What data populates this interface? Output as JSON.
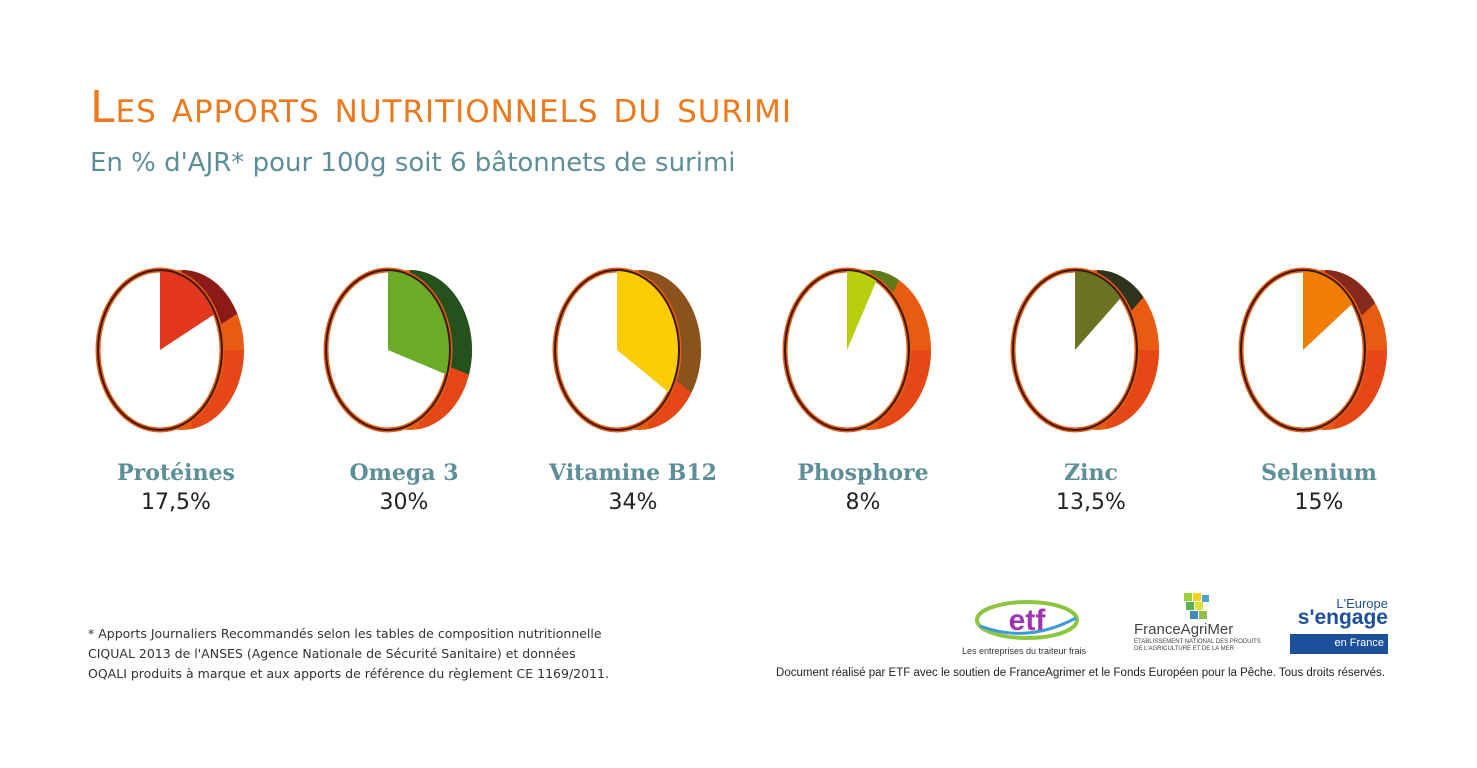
{
  "title": "Les apports nutritionnels du surimi",
  "subtitle": "En % d'AJR* pour 100g soit 6 bâtonnets de surimi",
  "chart_data": {
    "type": "pie",
    "categories": [
      "Protéines",
      "Omega 3",
      "Vitamine B12",
      "Phosphore",
      "Zinc",
      "Selenium"
    ],
    "values": [
      17.5,
      30,
      34,
      8,
      13.5,
      15
    ],
    "value_labels": [
      "17,5%",
      "30%",
      "34%",
      "8%",
      "13,5%",
      "15%"
    ],
    "unit": "%",
    "colors": [
      "#e3361f",
      "#6aac25",
      "#fccc04",
      "#b9cf0e",
      "#6b7322",
      "#f07d07"
    ],
    "dark_colors": [
      "#8c1a19",
      "#24521d",
      "#8a521c",
      "#5f7a1b",
      "#2e331c",
      "#86291d"
    ],
    "rim_color": "#ea5b12",
    "rim_dark": "#e23a1a"
  },
  "footnote": {
    "lines": [
      "* Apports Journaliers Recommandés selon les tables de composition nutritionnelle",
      "CIQUAL 2013 de l'ANSES (Agence Nationale de Sécurité Sanitaire) et données",
      "OQALI produits à marque et aux apports de référence du règlement CE 1169/2011."
    ]
  },
  "credits": "Document réalisé par ETF avec le soutien de FranceAgrimer et le Fonds Européen pour la Pêche. Tous droits réservés.",
  "logos": {
    "etf": {
      "name": "etf",
      "tagline": "Les entreprises du traiteur frais"
    },
    "franceagrimer": {
      "name": "FranceAgriMer",
      "tagline": "Établissement national des produits de l'agriculture et de la mer"
    },
    "europe": {
      "top": "L'Europe",
      "middle": "s'engage",
      "bottom": "en France"
    }
  }
}
